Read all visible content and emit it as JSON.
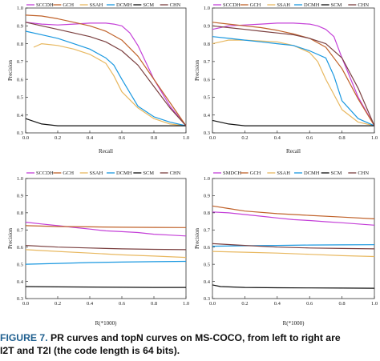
{
  "caption": {
    "label": "FIGURE 7.",
    "text_line1": "PR curves and topN curves on MS-COCO, from left to right are",
    "text_line2": "I2T and T2I (the code length is 64 bits)."
  },
  "colors": {
    "SCCDH": "#c440d8",
    "GCH": "#c0622a",
    "SSAH": "#e8b860",
    "DCMH": "#1a98e0",
    "SCM": "#111111",
    "CHN": "#7b4040"
  },
  "chart_data": [
    {
      "type": "line",
      "panel": "pr-i2t",
      "legend": [
        "SCCDH",
        "GCH",
        "SSAH",
        "DCMH",
        "SCM",
        "CHN"
      ],
      "xlabel": "Recall",
      "ylabel": "Precision",
      "xlim": [
        0,
        1
      ],
      "ylim": [
        0.3,
        1.0
      ],
      "xticks": [
        "0.0",
        "0.2",
        "0.4",
        "0.6",
        "0.8",
        "1.0"
      ],
      "yticks": [
        "0.3",
        "0.4",
        "0.5",
        "0.6",
        "0.7",
        "0.8",
        "0.9",
        "1.0"
      ],
      "series": [
        {
          "name": "SCCDH",
          "x": [
            0.0,
            0.1,
            0.2,
            0.3,
            0.4,
            0.5,
            0.55,
            0.6,
            0.65,
            0.7,
            0.8,
            0.9,
            1.0
          ],
          "y": [
            0.92,
            0.91,
            0.905,
            0.91,
            0.915,
            0.915,
            0.91,
            0.9,
            0.86,
            0.79,
            0.6,
            0.45,
            0.34
          ]
        },
        {
          "name": "GCH",
          "x": [
            0.0,
            0.1,
            0.2,
            0.3,
            0.4,
            0.5,
            0.6,
            0.7,
            0.8,
            0.9,
            1.0
          ],
          "y": [
            0.96,
            0.955,
            0.94,
            0.92,
            0.9,
            0.87,
            0.82,
            0.73,
            0.6,
            0.47,
            0.34
          ]
        },
        {
          "name": "SSAH",
          "x": [
            0.05,
            0.1,
            0.2,
            0.3,
            0.4,
            0.5,
            0.55,
            0.6,
            0.7,
            0.8,
            0.9,
            1.0
          ],
          "y": [
            0.78,
            0.8,
            0.79,
            0.77,
            0.74,
            0.69,
            0.62,
            0.53,
            0.44,
            0.38,
            0.35,
            0.34
          ]
        },
        {
          "name": "DCMH",
          "x": [
            0.0,
            0.1,
            0.2,
            0.3,
            0.4,
            0.5,
            0.55,
            0.6,
            0.7,
            0.8,
            0.9,
            1.0
          ],
          "y": [
            0.87,
            0.85,
            0.83,
            0.8,
            0.77,
            0.72,
            0.68,
            0.6,
            0.45,
            0.39,
            0.36,
            0.34
          ]
        },
        {
          "name": "SCM",
          "x": [
            0.0,
            0.1,
            0.2,
            0.3,
            0.5,
            0.7,
            0.9,
            1.0
          ],
          "y": [
            0.38,
            0.35,
            0.34,
            0.34,
            0.34,
            0.34,
            0.34,
            0.34
          ]
        },
        {
          "name": "CHN",
          "x": [
            0.0,
            0.1,
            0.2,
            0.3,
            0.4,
            0.5,
            0.6,
            0.7,
            0.8,
            0.9,
            1.0
          ],
          "y": [
            0.92,
            0.9,
            0.88,
            0.86,
            0.84,
            0.81,
            0.76,
            0.68,
            0.56,
            0.44,
            0.34
          ]
        }
      ]
    },
    {
      "type": "line",
      "panel": "pr-t2i",
      "legend": [
        "SCCDH",
        "GCH",
        "SSAH",
        "DCMH",
        "SCM",
        "CHN"
      ],
      "xlabel": "Recall",
      "ylabel": "Precision",
      "xlim": [
        0,
        1
      ],
      "ylim": [
        0.3,
        1.0
      ],
      "xticks": [
        "0.0",
        "0.2",
        "0.4",
        "0.6",
        "0.8",
        "1.0"
      ],
      "yticks": [
        "0.3",
        "0.4",
        "0.5",
        "0.6",
        "0.7",
        "0.8",
        "0.9",
        "1.0"
      ],
      "series": [
        {
          "name": "SCCDH",
          "x": [
            0.0,
            0.1,
            0.2,
            0.3,
            0.4,
            0.5,
            0.6,
            0.65,
            0.7,
            0.75,
            0.8,
            0.9,
            1.0
          ],
          "y": [
            0.88,
            0.9,
            0.905,
            0.91,
            0.915,
            0.915,
            0.91,
            0.9,
            0.88,
            0.84,
            0.72,
            0.5,
            0.34
          ]
        },
        {
          "name": "GCH",
          "x": [
            0.0,
            0.1,
            0.2,
            0.3,
            0.4,
            0.5,
            0.6,
            0.7,
            0.8,
            0.9,
            1.0
          ],
          "y": [
            0.92,
            0.91,
            0.9,
            0.89,
            0.875,
            0.855,
            0.83,
            0.78,
            0.66,
            0.49,
            0.34
          ]
        },
        {
          "name": "SSAH",
          "x": [
            0.0,
            0.1,
            0.2,
            0.3,
            0.4,
            0.5,
            0.6,
            0.65,
            0.7,
            0.8,
            0.9,
            1.0
          ],
          "y": [
            0.8,
            0.82,
            0.82,
            0.815,
            0.81,
            0.79,
            0.75,
            0.7,
            0.6,
            0.43,
            0.36,
            0.34
          ]
        },
        {
          "name": "DCMH",
          "x": [
            0.0,
            0.1,
            0.2,
            0.3,
            0.4,
            0.5,
            0.6,
            0.7,
            0.75,
            0.8,
            0.9,
            1.0
          ],
          "y": [
            0.84,
            0.83,
            0.82,
            0.81,
            0.8,
            0.79,
            0.76,
            0.72,
            0.62,
            0.48,
            0.38,
            0.34
          ]
        },
        {
          "name": "SCM",
          "x": [
            0.0,
            0.1,
            0.2,
            0.3,
            0.5,
            0.7,
            0.9,
            1.0
          ],
          "y": [
            0.37,
            0.35,
            0.34,
            0.34,
            0.34,
            0.34,
            0.34,
            0.34
          ]
        },
        {
          "name": "CHN",
          "x": [
            0.0,
            0.1,
            0.2,
            0.3,
            0.4,
            0.5,
            0.6,
            0.7,
            0.8,
            0.9,
            1.0
          ],
          "y": [
            0.9,
            0.89,
            0.88,
            0.87,
            0.86,
            0.85,
            0.83,
            0.8,
            0.72,
            0.55,
            0.34
          ]
        }
      ]
    },
    {
      "type": "line",
      "panel": "topn-i2t",
      "legend": [
        "SCCDH",
        "GCH",
        "SSAH",
        "DCMH",
        "SCM",
        "CHN"
      ],
      "xlabel": "R(*1000)",
      "ylabel": "Precision",
      "xlim": [
        0,
        1
      ],
      "ylim": [
        0.3,
        1.0
      ],
      "xticks": [
        "0.0",
        "0.2",
        "0.4",
        "0.6",
        "0.8",
        "1.0"
      ],
      "yticks": [
        "0.3",
        "0.4",
        "0.5",
        "0.6",
        "0.7",
        "0.8",
        "0.9",
        "1.0"
      ],
      "series": [
        {
          "name": "SCCDH",
          "x": [
            0.0,
            0.1,
            0.2,
            0.3,
            0.4,
            0.5,
            0.6,
            0.7,
            0.8,
            0.9,
            1.0
          ],
          "y": [
            0.745,
            0.735,
            0.725,
            0.715,
            0.705,
            0.695,
            0.69,
            0.685,
            0.675,
            0.67,
            0.665
          ]
        },
        {
          "name": "GCH",
          "x": [
            0.0,
            0.2,
            0.4,
            0.6,
            0.8,
            1.0
          ],
          "y": [
            0.725,
            0.72,
            0.718,
            0.716,
            0.715,
            0.714
          ]
        },
        {
          "name": "SSAH",
          "x": [
            0.0,
            0.2,
            0.4,
            0.6,
            0.8,
            1.0
          ],
          "y": [
            0.585,
            0.575,
            0.565,
            0.555,
            0.548,
            0.54
          ]
        },
        {
          "name": "DCMH",
          "x": [
            0.0,
            0.2,
            0.4,
            0.6,
            0.8,
            1.0
          ],
          "y": [
            0.5,
            0.505,
            0.51,
            0.513,
            0.515,
            0.517
          ]
        },
        {
          "name": "SCM",
          "x": [
            0.0,
            0.2,
            0.4,
            0.6,
            0.8,
            1.0
          ],
          "y": [
            0.37,
            0.368,
            0.367,
            0.366,
            0.365,
            0.365
          ]
        },
        {
          "name": "CHN",
          "x": [
            0.0,
            0.2,
            0.4,
            0.6,
            0.8,
            1.0
          ],
          "y": [
            0.61,
            0.6,
            0.595,
            0.59,
            0.587,
            0.585
          ]
        }
      ]
    },
    {
      "type": "line",
      "panel": "topn-t2i",
      "legend": [
        "SMDCH",
        "GCH",
        "SSAH",
        "DCMH",
        "SCM",
        "CHN"
      ],
      "xlabel": "R(*1000)",
      "ylabel": "Precision",
      "xlim": [
        0,
        1
      ],
      "ylim": [
        0.3,
        1.0
      ],
      "xticks": [
        "0.0",
        "0.2",
        "0.4",
        "0.6",
        "0.8",
        "1.0"
      ],
      "yticks": [
        "0.3",
        "0.4",
        "0.5",
        "0.6",
        "0.7",
        "0.8",
        "0.9",
        "1.0"
      ],
      "series": [
        {
          "name": "SMDCH",
          "x": [
            0.0,
            0.1,
            0.2,
            0.3,
            0.4,
            0.5,
            0.6,
            0.7,
            0.8,
            0.9,
            1.0
          ],
          "y": [
            0.805,
            0.8,
            0.79,
            0.78,
            0.77,
            0.76,
            0.755,
            0.748,
            0.742,
            0.735,
            0.728
          ]
        },
        {
          "name": "GCH",
          "x": [
            0.0,
            0.1,
            0.2,
            0.4,
            0.6,
            0.8,
            1.0
          ],
          "y": [
            0.84,
            0.825,
            0.81,
            0.795,
            0.785,
            0.775,
            0.765
          ]
        },
        {
          "name": "SSAH",
          "x": [
            0.0,
            0.2,
            0.4,
            0.6,
            0.8,
            1.0
          ],
          "y": [
            0.575,
            0.57,
            0.565,
            0.558,
            0.55,
            0.545
          ]
        },
        {
          "name": "DCMH",
          "x": [
            0.0,
            0.2,
            0.4,
            0.6,
            0.8,
            1.0
          ],
          "y": [
            0.605,
            0.608,
            0.61,
            0.612,
            0.613,
            0.614
          ]
        },
        {
          "name": "SCM",
          "x": [
            0.0,
            0.05,
            0.2,
            0.4,
            0.6,
            0.8,
            1.0
          ],
          "y": [
            0.38,
            0.37,
            0.365,
            0.363,
            0.362,
            0.361,
            0.36
          ]
        },
        {
          "name": "CHN",
          "x": [
            0.0,
            0.2,
            0.4,
            0.6,
            0.8,
            1.0
          ],
          "y": [
            0.62,
            0.61,
            0.6,
            0.595,
            0.592,
            0.59
          ]
        }
      ]
    }
  ]
}
